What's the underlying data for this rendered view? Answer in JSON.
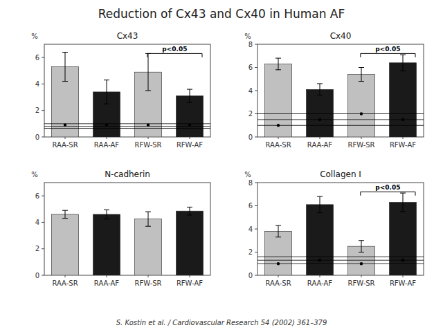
{
  "title": "Reduction of Cx43 and Cx40 in Human AF",
  "citation": "S. Kostin et al. / Cardiovascular Research 54 (2002) 361–379",
  "chart_data": [
    {
      "type": "bar",
      "title": "Cx43",
      "ylabel": "%",
      "categories": [
        "RAA-SR",
        "RAA-AF",
        "RFW-SR",
        "RFW-AF"
      ],
      "colors": [
        "#c0c0c0",
        "#1a1a1a",
        "#c0c0c0",
        "#1a1a1a"
      ],
      "values": [
        5.3,
        3.4,
        4.9,
        3.1
      ],
      "errors": [
        1.1,
        0.9,
        1.4,
        0.5
      ],
      "hlines": [
        0.65,
        0.8,
        1.0
      ],
      "dots": [
        0.9,
        0.9,
        0.9,
        0.9
      ],
      "annotation": "p<0.05",
      "ylim": [
        0,
        7
      ],
      "yticks": [
        0,
        2,
        4,
        6
      ],
      "grid": false
    },
    {
      "type": "bar",
      "title": "Cx40",
      "ylabel": "%",
      "categories": [
        "RAA-SR",
        "RAA-AF",
        "RFW-SR",
        "RFW-AF"
      ],
      "colors": [
        "#c0c0c0",
        "#1a1a1a",
        "#c0c0c0",
        "#1a1a1a"
      ],
      "values": [
        6.3,
        4.1,
        5.4,
        6.4
      ],
      "errors": [
        0.5,
        0.5,
        0.6,
        0.7
      ],
      "hlines": [
        1.0,
        1.5,
        2.0
      ],
      "dots": [
        1.0,
        1.5,
        2.0,
        1.5
      ],
      "annotation": "p<0.05",
      "ylim": [
        0,
        8
      ],
      "yticks": [
        0,
        2,
        4,
        6,
        8
      ],
      "grid": false
    },
    {
      "type": "bar",
      "title": "N-cadherin",
      "ylabel": "%",
      "categories": [
        "RAA-SR",
        "RAA-AF",
        "RFW-SR",
        "RFW-AF"
      ],
      "colors": [
        "#c0c0c0",
        "#1a1a1a",
        "#c0c0c0",
        "#1a1a1a"
      ],
      "values": [
        4.6,
        4.6,
        4.25,
        4.85
      ],
      "errors": [
        0.3,
        0.35,
        0.55,
        0.3
      ],
      "ylim": [
        0,
        7
      ],
      "yticks": [
        0,
        2,
        4,
        6
      ],
      "grid": false
    },
    {
      "type": "bar",
      "title": "Collagen I",
      "ylabel": "%",
      "categories": [
        "RAA-SR",
        "RAA-AF",
        "RFW-SR",
        "RFW-AF"
      ],
      "colors": [
        "#c0c0c0",
        "#1a1a1a",
        "#c0c0c0",
        "#1a1a1a"
      ],
      "values": [
        3.8,
        6.1,
        2.5,
        6.3
      ],
      "errors": [
        0.5,
        0.7,
        0.5,
        0.8
      ],
      "hlines": [
        1.0,
        1.3,
        1.6
      ],
      "dots": [
        1.0,
        1.3,
        1.0,
        1.3
      ],
      "annotation": "p<0.05",
      "ylim": [
        0,
        8
      ],
      "yticks": [
        0,
        2,
        4,
        6,
        8
      ],
      "grid": false
    }
  ]
}
